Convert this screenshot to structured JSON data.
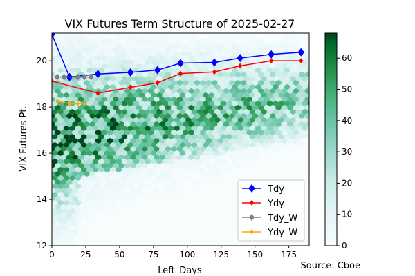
{
  "chart_data": {
    "type": "line",
    "title": "VIX Futures Term Structure of 2025-02-27",
    "xlabel": "Left_Days",
    "ylabel": "VIX Futures Pt.",
    "source": "Source: Cboe",
    "xlim": [
      0,
      190
    ],
    "ylim": [
      12,
      21.2
    ],
    "x_ticks": [
      0,
      25,
      50,
      75,
      100,
      125,
      150,
      175
    ],
    "y_ticks": [
      12,
      14,
      16,
      18,
      20
    ],
    "grid": false,
    "legend_position": "lower-right",
    "background": {
      "type": "hexbin_density",
      "colormap": "BuGn",
      "colorbar_range": [
        0,
        68
      ],
      "colorbar_ticks": [
        0,
        10,
        20,
        30,
        40,
        50,
        60
      ]
    },
    "series": [
      {
        "name": "Tdy",
        "color": "#0000ff",
        "marker": "diamond",
        "x": [
          0,
          13,
          34,
          58,
          78,
          95,
          120,
          139,
          162,
          184
        ],
        "y": [
          21.15,
          19.3,
          19.43,
          19.5,
          19.6,
          19.9,
          19.93,
          20.12,
          20.28,
          20.37
        ]
      },
      {
        "name": "Ydy",
        "color": "#ff0000",
        "marker": "diamond",
        "x": [
          0,
          34,
          58,
          78,
          95,
          120,
          139,
          162,
          184
        ],
        "y": [
          19.12,
          18.6,
          18.85,
          19.05,
          19.45,
          19.52,
          19.78,
          20.0,
          20.0
        ]
      },
      {
        "name": "Tdy_W",
        "color": "#808080",
        "marker": "diamond",
        "x": [
          4,
          9,
          19,
          24,
          29
        ],
        "y": [
          19.3,
          19.3,
          19.3,
          19.3,
          19.3
        ]
      },
      {
        "name": "Ydy_W",
        "color": "#ffa500",
        "marker": "diamond",
        "x": [
          4,
          13,
          19,
          24
        ],
        "y": [
          18.25,
          18.15,
          18.15,
          18.15
        ]
      }
    ]
  }
}
